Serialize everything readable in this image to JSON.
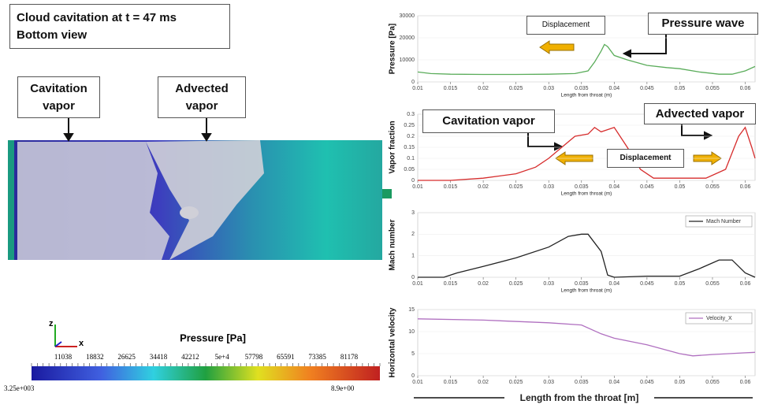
{
  "simulation_view": {
    "title": [
      "Cloud cavitation at t = 47 ms",
      "Bottom view"
    ],
    "labels": [
      [
        "Cavitation",
        "vapor"
      ],
      [
        "Advected",
        "vapor"
      ]
    ],
    "axes": [
      "z",
      "x"
    ],
    "colorbar": {
      "title": "Pressure  [Pa]",
      "ticks": [
        11038,
        18832,
        26625,
        34418,
        42212,
        {
          "value": 50000,
          "label": "5e+4"
        },
        57798,
        65591,
        73385,
        81178
      ],
      "min_label": "3.25e+003",
      "max_label": "8.9e+00"
    }
  },
  "chart_data": [
    {
      "type": "line",
      "ylabel": "Pressure [Pa]",
      "xlabel": "Length from throat (m)",
      "x": [
        0.01,
        0.012,
        0.015,
        0.02,
        0.025,
        0.03,
        0.034,
        0.036,
        0.037,
        0.038,
        0.0385,
        0.039,
        0.04,
        0.042,
        0.045,
        0.048,
        0.05,
        0.053,
        0.056,
        0.058,
        0.06,
        0.0615
      ],
      "series": [
        {
          "color": "#5aac5a",
          "values": [
            4500,
            3800,
            3500,
            3400,
            3400,
            3500,
            3800,
            5000,
            9000,
            14000,
            17000,
            16000,
            12000,
            10000,
            7500,
            6500,
            6000,
            4500,
            3500,
            3500,
            5000,
            7000
          ]
        }
      ],
      "xlim": [
        0.01,
        0.0615
      ],
      "xticks": [
        0.01,
        0.015,
        0.02,
        0.025,
        0.03,
        0.035,
        0.04,
        0.045,
        0.05,
        0.055,
        0.06
      ],
      "ylim": [
        0,
        30000
      ],
      "yticks": [
        0,
        10000,
        20000,
        30000
      ],
      "annotations": [
        "Displacement",
        "Pressure wave"
      ]
    },
    {
      "type": "line",
      "ylabel": "Vapor fraction",
      "xlabel": "Length from throat (m)",
      "x": [
        0.01,
        0.015,
        0.02,
        0.025,
        0.028,
        0.03,
        0.032,
        0.034,
        0.036,
        0.037,
        0.038,
        0.04,
        0.042,
        0.044,
        0.046,
        0.05,
        0.054,
        0.057,
        0.059,
        0.06,
        0.061,
        0.0615
      ],
      "series": [
        {
          "color": "#d62c2c",
          "values": [
            0,
            0,
            0.01,
            0.03,
            0.06,
            0.1,
            0.15,
            0.2,
            0.21,
            0.24,
            0.22,
            0.24,
            0.15,
            0.05,
            0.01,
            0.01,
            0.01,
            0.05,
            0.2,
            0.24,
            0.15,
            0.1
          ]
        }
      ],
      "xlim": [
        0.01,
        0.0615
      ],
      "xticks": [
        0.01,
        0.015,
        0.02,
        0.025,
        0.03,
        0.035,
        0.04,
        0.045,
        0.05,
        0.055,
        0.06
      ],
      "ylim": [
        0,
        0.3
      ],
      "yticks": [
        0,
        0.05,
        0.1,
        0.15,
        0.2,
        0.25,
        0.3
      ],
      "annotations": [
        "Cavitation vapor",
        "Displacement",
        "Advected vapor"
      ]
    },
    {
      "type": "line",
      "ylabel": "Mach number",
      "xlabel": "Length from throat (m)",
      "x": [
        0.01,
        0.014,
        0.016,
        0.02,
        0.025,
        0.03,
        0.033,
        0.035,
        0.036,
        0.038,
        0.039,
        0.04,
        0.045,
        0.05,
        0.053,
        0.056,
        0.058,
        0.06,
        0.0615
      ],
      "series": [
        {
          "name": "Mach Number",
          "color": "#222222",
          "values": [
            0,
            0,
            0.2,
            0.5,
            0.9,
            1.4,
            1.9,
            2.0,
            2.0,
            1.2,
            0.1,
            0,
            0.05,
            0.05,
            0.4,
            0.8,
            0.8,
            0.2,
            0
          ]
        }
      ],
      "xlim": [
        0.01,
        0.0615
      ],
      "xticks": [
        0.01,
        0.015,
        0.02,
        0.025,
        0.03,
        0.035,
        0.04,
        0.045,
        0.05,
        0.055,
        0.06
      ],
      "ylim": [
        0,
        3
      ],
      "yticks": [
        0,
        1,
        2,
        3
      ]
    },
    {
      "type": "line",
      "ylabel": "Horizontal velocity",
      "xlabel": "Length from the throat [m]",
      "x": [
        0.01,
        0.02,
        0.03,
        0.035,
        0.038,
        0.04,
        0.045,
        0.05,
        0.052,
        0.055,
        0.06,
        0.0615
      ],
      "series": [
        {
          "name": "Velocity_X",
          "color": "#b070c0",
          "values": [
            12.9,
            12.6,
            12,
            11.5,
            9.5,
            8.5,
            7,
            5,
            4.5,
            4.8,
            5.2,
            5.3
          ]
        }
      ],
      "xlim": [
        0.01,
        0.0615
      ],
      "xticks": [
        0.01,
        0.015,
        0.02,
        0.025,
        0.03,
        0.035,
        0.04,
        0.045,
        0.05,
        0.055,
        0.06
      ],
      "ylim": [
        0,
        15
      ],
      "yticks": [
        0,
        5,
        10,
        15
      ]
    }
  ]
}
